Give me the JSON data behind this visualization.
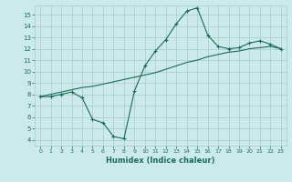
{
  "line1_x": [
    0,
    1,
    2,
    3,
    4,
    5,
    6,
    7,
    8,
    9,
    10,
    11,
    12,
    13,
    14,
    15,
    16,
    17,
    18,
    19,
    20,
    21,
    22,
    23
  ],
  "line1_y": [
    7.8,
    7.8,
    8.0,
    8.2,
    7.7,
    5.8,
    5.5,
    4.3,
    4.1,
    8.3,
    10.5,
    11.8,
    12.8,
    14.2,
    15.3,
    15.6,
    13.2,
    12.2,
    12.0,
    12.1,
    12.5,
    12.7,
    12.4,
    12.0
  ],
  "line2_x": [
    0,
    1,
    2,
    3,
    4,
    5,
    6,
    7,
    8,
    9,
    10,
    11,
    12,
    13,
    14,
    15,
    16,
    17,
    18,
    19,
    20,
    21,
    22,
    23
  ],
  "line2_y": [
    7.8,
    8.0,
    8.2,
    8.4,
    8.6,
    8.7,
    8.9,
    9.1,
    9.3,
    9.5,
    9.7,
    9.9,
    10.2,
    10.5,
    10.8,
    11.0,
    11.3,
    11.5,
    11.7,
    11.8,
    12.0,
    12.1,
    12.2,
    12.0
  ],
  "color": "#1a6b5a",
  "bg_color": "#cdeaea",
  "grid_color": "#aecece",
  "xlabel": "Humidex (Indice chaleur)",
  "xlim": [
    -0.5,
    23.5
  ],
  "ylim": [
    3.5,
    15.8
  ],
  "yticks": [
    4,
    5,
    6,
    7,
    8,
    9,
    10,
    11,
    12,
    13,
    14,
    15
  ],
  "xticks": [
    0,
    1,
    2,
    3,
    4,
    5,
    6,
    7,
    8,
    9,
    10,
    11,
    12,
    13,
    14,
    15,
    16,
    17,
    18,
    19,
    20,
    21,
    22,
    23
  ]
}
